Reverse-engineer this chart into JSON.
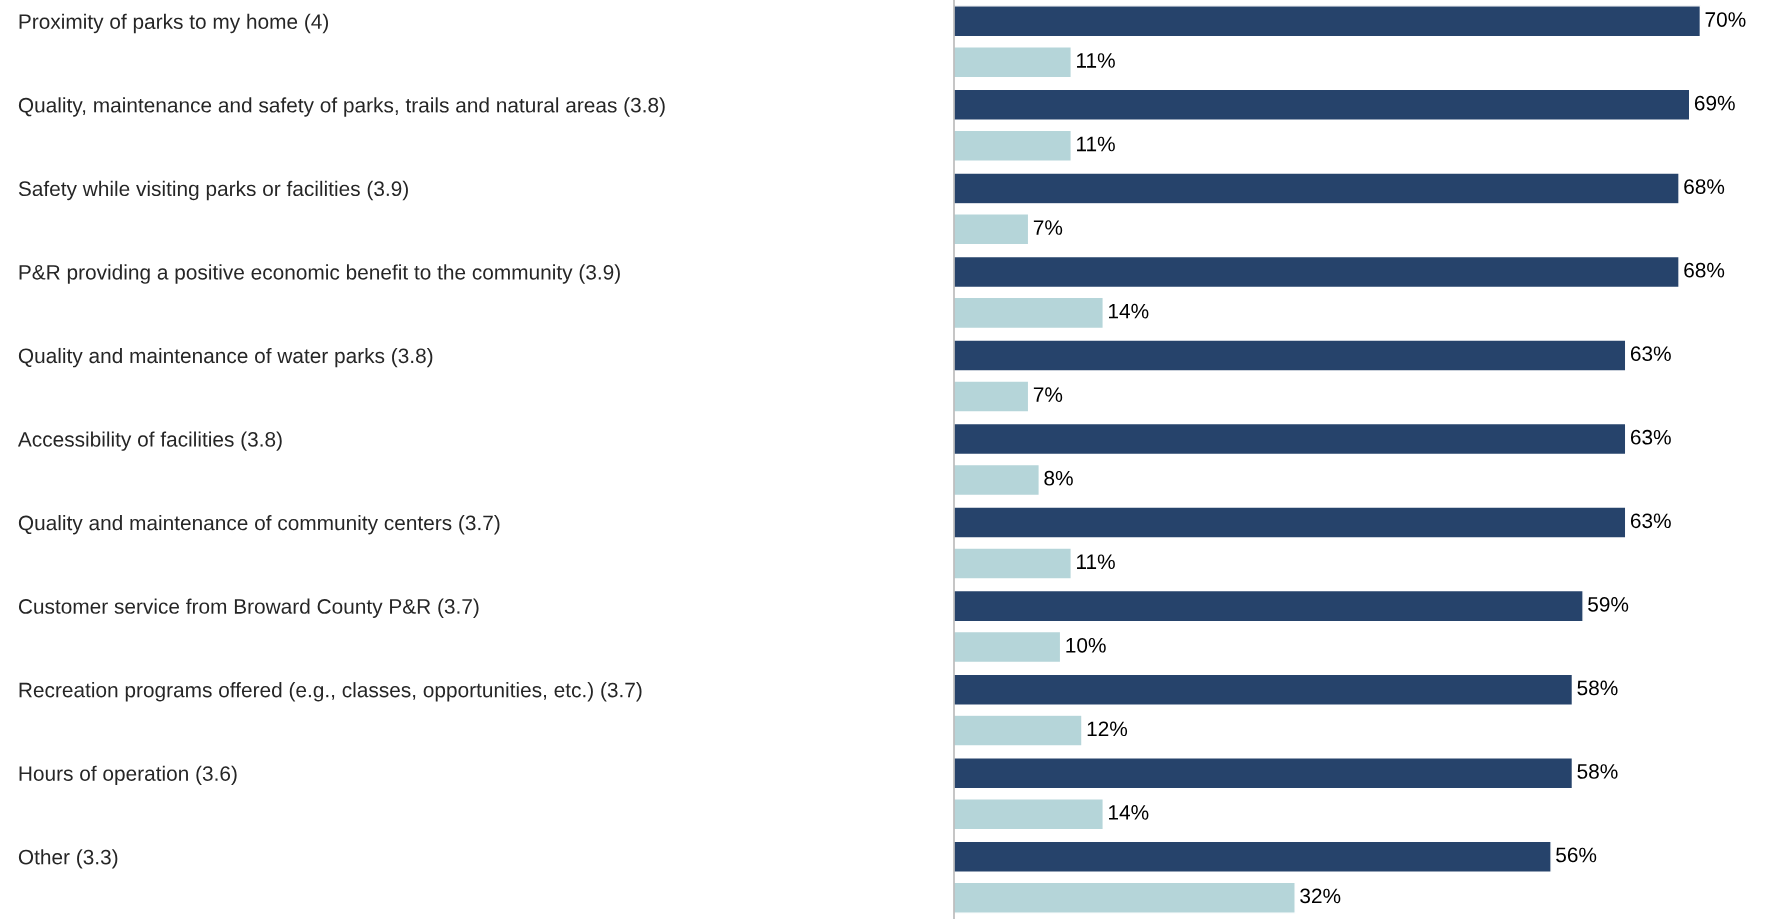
{
  "chart_data": {
    "type": "bar",
    "orientation": "horizontal",
    "categories": [
      "Proximity of parks to my home (4)",
      "Quality, maintenance and safety of parks, trails and natural areas (3.8)",
      "Safety while visiting parks or facilities (3.9)",
      "P&R providing a positive economic benefit to the community (3.9)",
      "Quality and maintenance of water parks (3.8)",
      "Accessibility of facilities (3.8)",
      "Quality and maintenance of community centers (3.7)",
      "Customer service from Broward County P&R (3.7)",
      "Recreation programs offered (e.g., classes, opportunities, etc.) (3.7)",
      "Hours of operation (3.6)",
      "Other (3.3)"
    ],
    "series": [
      {
        "color": "#26436b",
        "values": [
          70,
          69,
          68,
          68,
          63,
          63,
          63,
          59,
          58,
          58,
          56
        ],
        "value_labels": [
          "70%",
          "69%",
          "68%",
          "68%",
          "63%",
          "63%",
          "63%",
          "59%",
          "58%",
          "58%",
          "56%"
        ]
      },
      {
        "color": "#b5d5d9",
        "values": [
          11,
          11,
          7,
          14,
          7,
          8,
          11,
          10,
          12,
          14,
          32
        ],
        "value_labels": [
          "11%",
          "11%",
          "7%",
          "14%",
          "7%",
          "8%",
          "11%",
          "10%",
          "12%",
          "14%",
          "32%"
        ]
      }
    ],
    "grid": false,
    "legend": false
  }
}
